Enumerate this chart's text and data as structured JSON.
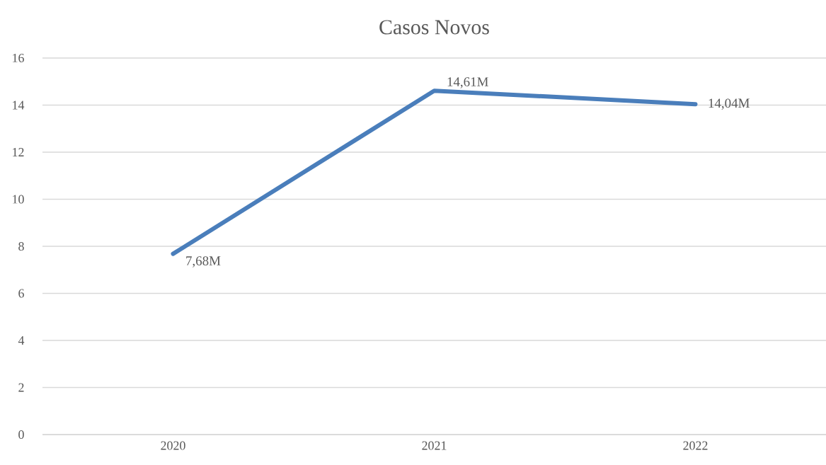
{
  "chart_data": {
    "type": "line",
    "title": "Casos Novos",
    "categories": [
      "2020",
      "2021",
      "2022"
    ],
    "series": [
      {
        "color": "#4a7ebb",
        "values": [
          7.68,
          14.61,
          14.04
        ],
        "value_labels": [
          "7,68M",
          "14,61M",
          "14,04M"
        ]
      }
    ],
    "ylim": [
      0,
      16
    ],
    "yticks": [
      0,
      2,
      4,
      6,
      8,
      10,
      12,
      14,
      16
    ],
    "grid": "y",
    "marker": "none",
    "line_style": "solid"
  }
}
